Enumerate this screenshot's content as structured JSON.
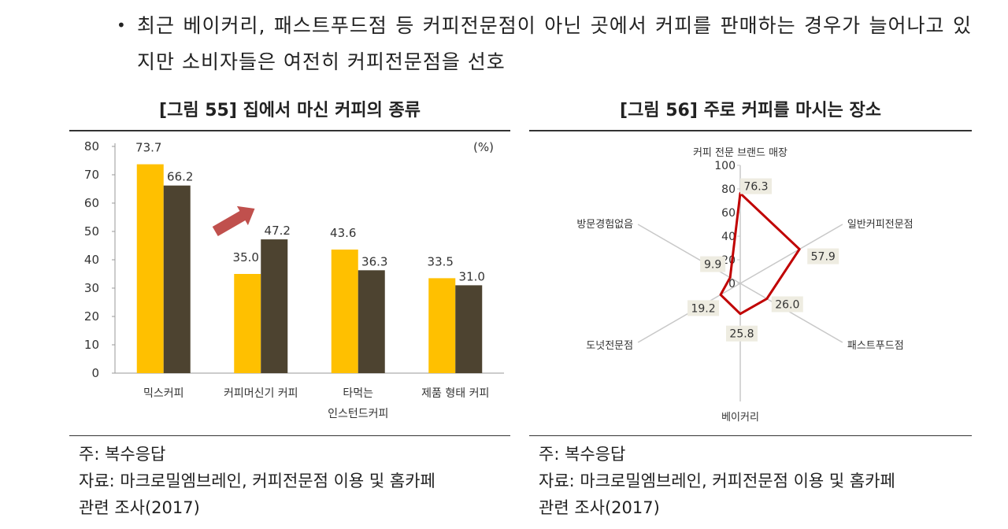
{
  "bullet": {
    "symbol": "•",
    "text": "최근 베이커리, 패스트푸드점 등 커피전문점이 아닌 곳에서 커피를 판매하는 경우가 늘어나고 있지만 소비자들은 여전히 커피전문점을 선호"
  },
  "figures": [
    {
      "title": "[그림 55] 집에서 마신 커피의 종류",
      "note": "주: 복수응답",
      "source_line1": "자료: 마크로밀엠브레인, 커피전문점 이용 및 홈카페",
      "source_line2": "관련 조사(2017)"
    },
    {
      "title": "[그림 56] 주로 커피를 마시는 장소",
      "note": "주: 복수응답",
      "source_line1": "자료: 마크로밀엠브레인, 커피전문점 이용 및 홈카페",
      "source_line2": "관련 조사(2017)"
    }
  ],
  "chart_data": [
    {
      "type": "bar",
      "title": "[그림 55] 집에서 마신 커피의 종류",
      "unit": "(%)",
      "ylim": [
        0,
        80
      ],
      "yticks": [
        0,
        10,
        20,
        30,
        40,
        50,
        60,
        70,
        80
      ],
      "categories": [
        [
          "믹스커피"
        ],
        [
          "커피머신기 커피"
        ],
        [
          "타먹는",
          "인스턴드커피"
        ],
        [
          "제품 형태 커피"
        ]
      ],
      "series": [
        {
          "name": "series1",
          "color": "#FFC000",
          "values": [
            73.7,
            35.0,
            43.6,
            33.5
          ]
        },
        {
          "name": "series2",
          "color": "#4D4330",
          "values": [
            66.2,
            47.2,
            36.3,
            31.0
          ]
        }
      ],
      "labels": [
        [
          "73.7",
          "35.0",
          "43.6",
          "33.5"
        ],
        [
          "66.2",
          "47.2",
          "36.3",
          "31.0"
        ]
      ],
      "annotation": "up-arrow",
      "arrow_color": "#C0504D"
    },
    {
      "type": "radar",
      "title": "[그림 56] 주로 커피를 마시는 장소",
      "range": [
        0,
        100
      ],
      "ticks": [
        0,
        20,
        40,
        60,
        80,
        100
      ],
      "axes": [
        "커피 전문 브랜드 매장",
        "일반커피전문점",
        "패스트푸드점",
        "베이커리",
        "도넛전문점",
        "방문경험없음"
      ],
      "values": [
        76.3,
        57.9,
        26.0,
        25.8,
        19.2,
        9.9
      ],
      "labels": [
        "76.3",
        "57.9",
        "26.0",
        "25.8",
        "19.2",
        "9.9"
      ],
      "line_color": "#C00000",
      "label_bg": "#EEECE1"
    }
  ]
}
